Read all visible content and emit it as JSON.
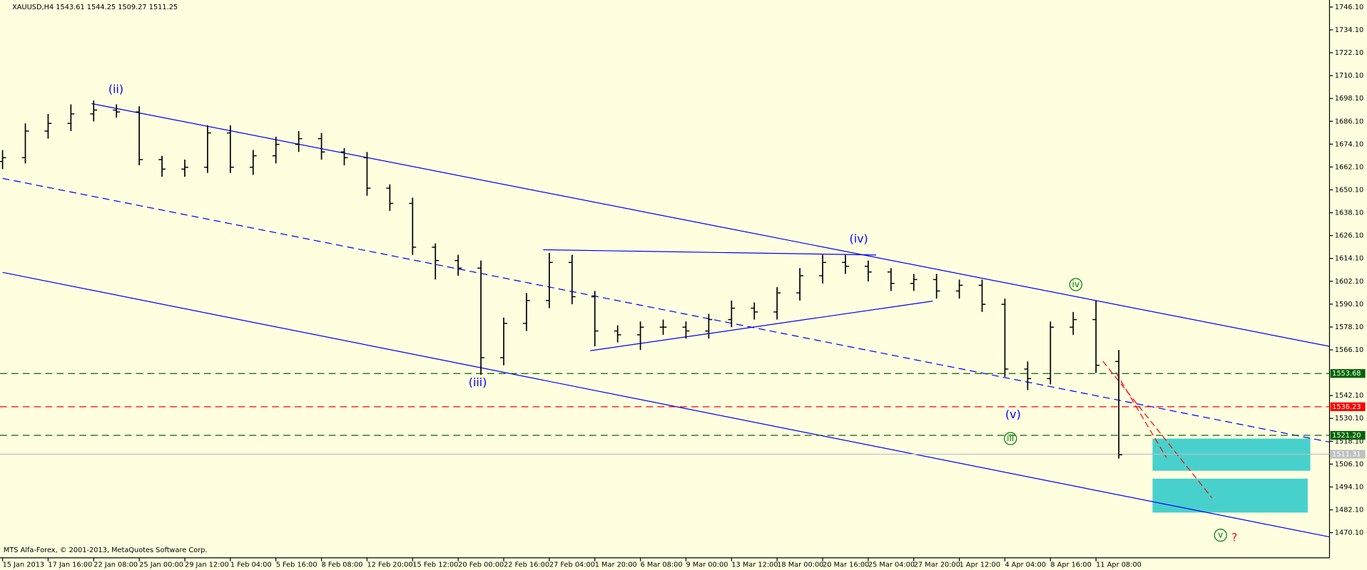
{
  "chart_data": {
    "type": "ohlc",
    "title": "XAUUSD,H4  1543.61 1544.25 1509.27 1511.25",
    "credit": "MTS Alfa-Forex, © 2001-2013, MetaQuotes Software Corp.",
    "color": "#000000",
    "x": [
      0,
      8,
      16,
      24,
      32,
      40,
      48,
      56,
      64,
      72,
      80,
      88,
      96,
      104,
      112,
      120,
      128,
      136,
      144,
      152,
      160,
      168,
      176,
      184,
      192,
      200,
      208,
      216,
      224,
      232,
      240,
      248,
      256,
      264,
      272,
      280,
      288,
      296,
      304,
      312,
      320,
      328,
      336,
      344,
      352,
      360,
      368,
      376,
      384,
      392
    ],
    "open": [
      1665,
      1667,
      1681,
      1685,
      1690,
      1692,
      1691,
      1666,
      1661,
      1662,
      1680,
      1662,
      1668,
      1674,
      1677,
      1670,
      1667,
      1651,
      1643,
      1620,
      1613,
      1609,
      1562,
      1580,
      1592,
      1612,
      1594,
      1576,
      1574,
      1578,
      1578,
      1576,
      1582,
      1588,
      1586,
      1596,
      1605,
      1612,
      1610,
      1607,
      1601,
      1603,
      1597,
      1600,
      1590,
      1556,
      1551,
      1578,
      1582,
      1560
    ],
    "high": [
      1671,
      1685,
      1690,
      1695,
      1697,
      1695,
      1694,
      1668,
      1666,
      1684,
      1684,
      1671,
      1678,
      1681,
      1680,
      1672,
      1670,
      1653,
      1646,
      1622,
      1616,
      1613,
      1583,
      1596,
      1617,
      1616,
      1597,
      1579,
      1581,
      1582,
      1581,
      1585,
      1592,
      1591,
      1599,
      1609,
      1616,
      1616,
      1613,
      1609,
      1606,
      1606,
      1603,
      1603,
      1593,
      1560,
      1581,
      1586,
      1592,
      1566
    ],
    "low": [
      1661,
      1664,
      1677,
      1681,
      1686,
      1688,
      1663,
      1657,
      1657,
      1659,
      1659,
      1658,
      1664,
      1670,
      1666,
      1663,
      1647,
      1639,
      1616,
      1603,
      1605,
      1553,
      1558,
      1576,
      1588,
      1590,
      1568,
      1570,
      1566,
      1574,
      1572,
      1572,
      1578,
      1582,
      1582,
      1592,
      1601,
      1606,
      1602,
      1597,
      1597,
      1593,
      1593,
      1586,
      1552,
      1545,
      1548,
      1574,
      1554,
      1509
    ],
    "close": [
      1667,
      1681,
      1685,
      1690,
      1692,
      1691,
      1666,
      1661,
      1662,
      1680,
      1662,
      1668,
      1674,
      1677,
      1670,
      1667,
      1651,
      1643,
      1620,
      1613,
      1609,
      1562,
      1580,
      1592,
      1612,
      1594,
      1576,
      1574,
      1578,
      1578,
      1576,
      1582,
      1588,
      1586,
      1596,
      1605,
      1612,
      1610,
      1607,
      1601,
      1603,
      1597,
      1600,
      1590,
      1556,
      1551,
      1578,
      1582,
      1558,
      1511
    ],
    "xlim": [
      -0.9,
      466
    ],
    "xticks": [
      {
        "value": 0,
        "label": "15 Jan 2013"
      },
      {
        "value": 16,
        "label": "17 Jan 16:00"
      },
      {
        "value": 32,
        "label": "22 Jan 08:00"
      },
      {
        "value": 48,
        "label": "25 Jan 00:00"
      },
      {
        "value": 64,
        "label": "29 Jan 12:00"
      },
      {
        "value": 80,
        "label": "1 Feb 04:00"
      },
      {
        "value": 96,
        "label": "5 Feb 16:00"
      },
      {
        "value": 112,
        "label": "8 Feb 08:00"
      },
      {
        "value": 128,
        "label": "12 Feb 20:00"
      },
      {
        "value": 144,
        "label": "15 Feb 12:00"
      },
      {
        "value": 160,
        "label": "20 Feb 00:00"
      },
      {
        "value": 176,
        "label": "22 Feb 16:00"
      },
      {
        "value": 192,
        "label": "27 Feb 04:00"
      },
      {
        "value": 208,
        "label": "1 Mar 20:00"
      },
      {
        "value": 224,
        "label": "6 Mar 08:00"
      },
      {
        "value": 240,
        "label": "9 Mar 00:00"
      },
      {
        "value": 256,
        "label": "13 Mar 12:00"
      },
      {
        "value": 272,
        "label": "18 Mar 00:00"
      },
      {
        "value": 288,
        "label": "20 Mar 16:00"
      },
      {
        "value": 304,
        "label": "25 Mar 04:00"
      },
      {
        "value": 320,
        "label": "27 Mar 20:00"
      },
      {
        "value": 336,
        "label": "1 Apr 12:00"
      },
      {
        "value": 352,
        "label": "4 Apr 04:00"
      },
      {
        "value": 368,
        "label": "8 Apr 16:00"
      },
      {
        "value": 384,
        "label": "11 Apr 08:00"
      }
    ],
    "ylim": [
      1456.9,
      1749.8
    ],
    "yticks": [
      {
        "value": 1746.1,
        "label": "1746.10"
      },
      {
        "value": 1734.1,
        "label": "1734.10"
      },
      {
        "value": 1722.1,
        "label": "1722.10"
      },
      {
        "value": 1710.1,
        "label": "1710.10"
      },
      {
        "value": 1698.1,
        "label": "1698.10"
      },
      {
        "value": 1686.1,
        "label": "1686.10"
      },
      {
        "value": 1674.1,
        "label": "1674.10"
      },
      {
        "value": 1662.1,
        "label": "1662.10"
      },
      {
        "value": 1650.1,
        "label": "1650.10"
      },
      {
        "value": 1638.1,
        "label": "1638.10"
      },
      {
        "value": 1626.1,
        "label": "1626.10"
      },
      {
        "value": 1614.1,
        "label": "1614.10"
      },
      {
        "value": 1602.1,
        "label": "1602.10"
      },
      {
        "value": 1590.1,
        "label": "1590.10"
      },
      {
        "value": 1578.1,
        "label": "1578.10"
      },
      {
        "value": 1566.1,
        "label": "1566.10"
      },
      {
        "value": 1542.1,
        "label": "1542.10"
      },
      {
        "value": 1530.1,
        "label": "1530.10"
      },
      {
        "value": 1518.1,
        "label": "1518.10"
      },
      {
        "value": 1506.1,
        "label": "1506.10"
      },
      {
        "value": 1494.1,
        "label": "1494.10"
      },
      {
        "value": 1482.1,
        "label": "1482.10"
      },
      {
        "value": 1470.1,
        "label": "1470.10"
      }
    ],
    "levels": [
      {
        "value": 1553.68,
        "color": "#006400",
        "dashed": true
      },
      {
        "value": 1536.23,
        "color": "#ff0000",
        "dashed": true
      },
      {
        "value": 1521.2,
        "label": "1521.20",
        "color": "#006400",
        "dashed": true
      },
      {
        "value": 1511.31,
        "color": "#c0c0c0",
        "dashed": false
      }
    ],
    "annotations": [
      {
        "text": "(ii)",
        "color": "#0000ff"
      },
      {
        "text": "(iii)",
        "color": "#0000ff"
      },
      {
        "text": "(iv)",
        "color": "#0000ff"
      },
      {
        "text": "(v)",
        "color": "#0000ff"
      },
      {
        "text": "iii",
        "color": "#008000"
      },
      {
        "text": "iv",
        "color": "#008000"
      },
      {
        "text": "v",
        "color": "#008000"
      },
      {
        "text": "?",
        "color": "#ff0000"
      }
    ]
  }
}
